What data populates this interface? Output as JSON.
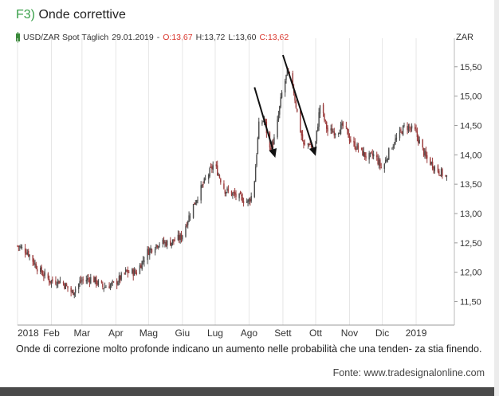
{
  "figure": {
    "number": "F3)",
    "title": "Onde correttive"
  },
  "legend": {
    "instrument": "USD/ZAR Spot Täglich",
    "date": "29.01.2019",
    "dash": "-",
    "open": "O:13,67",
    "high": "H:13,72",
    "low": "L:13,60",
    "close": "C:13,62",
    "unit": "ZAR"
  },
  "caption": "Onde di correzione molto profonde indicano un aumento nelle probabilità che una tenden- za stia finendo.",
  "source": "Fonte: www.tradesignalonline.com",
  "colors": {
    "accent": "#3aa04a",
    "up": "#4a4a4a",
    "down": "#9a3a3a",
    "arrow": "#111111",
    "highlight": "#d9342b"
  },
  "chart_data": {
    "type": "candlestick",
    "title": "USD/ZAR Spot Täglich",
    "ylabel": "ZAR",
    "ylim": [
      11.1,
      15.85
    ],
    "yticks": [
      11.5,
      12.0,
      12.5,
      13.0,
      13.5,
      14.0,
      14.5,
      15.0,
      15.5
    ],
    "ytick_labels": [
      "11,50",
      "12,00",
      "12,50",
      "13,00",
      "13,50",
      "14,00",
      "14,50",
      "15,00",
      "15,50"
    ],
    "xticks": [
      "2018",
      "Feb",
      "Mar",
      "Apr",
      "Mag",
      "Giu",
      "Lug",
      "Ago",
      "Sett",
      "Ott",
      "Nov",
      "Dic",
      "2019"
    ],
    "grid": "vertical",
    "close_path": [
      [
        "2018-01-01",
        12.45
      ],
      [
        "2018-01-10",
        12.35
      ],
      [
        "2018-01-20",
        12.05
      ],
      [
        "2018-01-31",
        11.85
      ],
      [
        "2018-02-10",
        11.85
      ],
      [
        "2018-02-20",
        11.65
      ],
      [
        "2018-02-28",
        11.85
      ],
      [
        "2018-03-10",
        11.9
      ],
      [
        "2018-03-20",
        11.75
      ],
      [
        "2018-03-31",
        11.8
      ],
      [
        "2018-04-10",
        12.0
      ],
      [
        "2018-04-20",
        12.0
      ],
      [
        "2018-04-30",
        12.35
      ],
      [
        "2018-05-10",
        12.5
      ],
      [
        "2018-05-20",
        12.5
      ],
      [
        "2018-05-31",
        12.6
      ],
      [
        "2018-06-10",
        13.1
      ],
      [
        "2018-06-20",
        13.5
      ],
      [
        "2018-06-30",
        13.85
      ],
      [
        "2018-07-10",
        13.4
      ],
      [
        "2018-07-20",
        13.3
      ],
      [
        "2018-07-31",
        13.2
      ],
      [
        "2018-08-05",
        13.35
      ],
      [
        "2018-08-10",
        14.5
      ],
      [
        "2018-08-15",
        14.6
      ],
      [
        "2018-08-20",
        14.1
      ],
      [
        "2018-08-25",
        14.3
      ],
      [
        "2018-08-31",
        15.05
      ],
      [
        "2018-09-05",
        15.4
      ],
      [
        "2018-09-10",
        15.2
      ],
      [
        "2018-09-15",
        14.6
      ],
      [
        "2018-09-20",
        14.15
      ],
      [
        "2018-09-25",
        14.2
      ],
      [
        "2018-09-30",
        14.05
      ],
      [
        "2018-10-05",
        14.85
      ],
      [
        "2018-10-12",
        14.4
      ],
      [
        "2018-10-20",
        14.4
      ],
      [
        "2018-10-27",
        14.5
      ],
      [
        "2018-11-03",
        14.2
      ],
      [
        "2018-11-10",
        14.1
      ],
      [
        "2018-11-17",
        13.95
      ],
      [
        "2018-11-24",
        14.0
      ],
      [
        "2018-12-01",
        13.75
      ],
      [
        "2018-12-08",
        14.1
      ],
      [
        "2018-12-15",
        14.3
      ],
      [
        "2018-12-22",
        14.5
      ],
      [
        "2018-12-31",
        14.4
      ],
      [
        "2019-01-10",
        13.95
      ],
      [
        "2019-01-20",
        13.75
      ],
      [
        "2019-01-29",
        13.62
      ]
    ],
    "annotations": [
      {
        "type": "arrow",
        "from": [
          "2018-08-06",
          15.15
        ],
        "to": [
          "2018-08-25",
          13.95
        ]
      },
      {
        "type": "arrow",
        "from": [
          "2018-09-01",
          15.7
        ],
        "to": [
          "2018-10-01",
          13.98
        ]
      }
    ]
  }
}
